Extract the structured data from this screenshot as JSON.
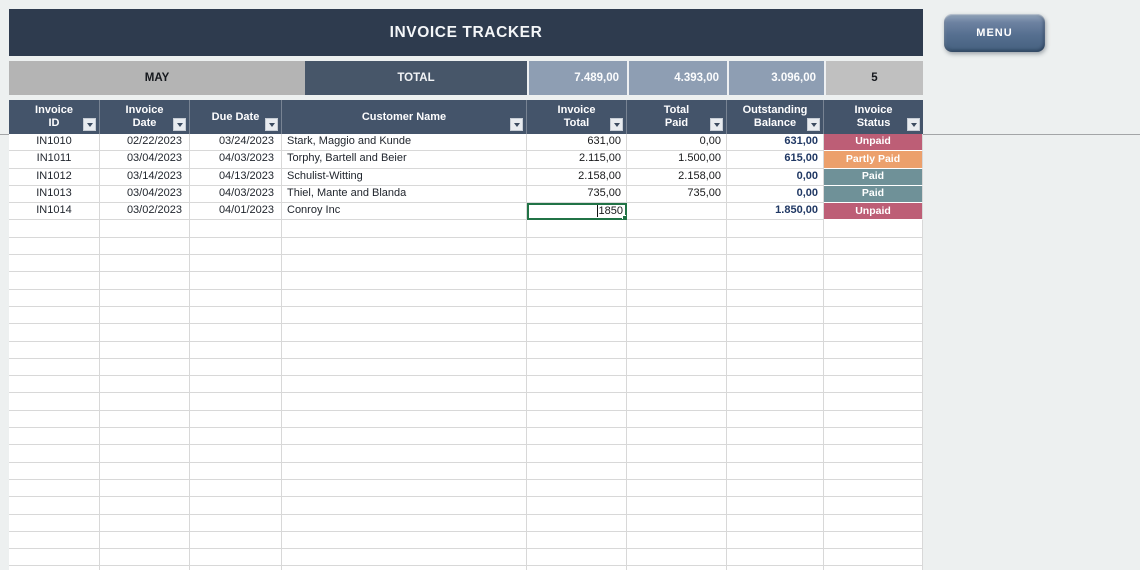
{
  "app": {
    "title": "INVOICE TRACKER",
    "menu_button_label": "MENU"
  },
  "summary": {
    "month": "MAY",
    "total_label": "TOTAL",
    "invoice_total": "7.489,00",
    "total_paid": "4.393,00",
    "outstanding_balance": "3.096,00",
    "invoice_count": "5"
  },
  "table": {
    "columns": [
      {
        "line1": "Invoice",
        "line2": "ID"
      },
      {
        "line1": "Invoice",
        "line2": "Date"
      },
      {
        "line1": "Due Date"
      },
      {
        "line1": "Customer Name"
      },
      {
        "line1": "Invoice",
        "line2": "Total"
      },
      {
        "line1": "Total",
        "line2": "Paid"
      },
      {
        "line1": "Outstanding",
        "line2": "Balance"
      },
      {
        "line1": "Invoice",
        "line2": "Status"
      }
    ],
    "rows": [
      {
        "invoice_id": "IN1010",
        "invoice_date": "02/22/2023",
        "due_date": "03/24/2023",
        "customer_name": "Stark, Maggio and Kunde",
        "invoice_total": "631,00",
        "total_paid": "0,00",
        "outstanding_balance": "631,00",
        "status": "Unpaid"
      },
      {
        "invoice_id": "IN1011",
        "invoice_date": "03/04/2023",
        "due_date": "04/03/2023",
        "customer_name": "Torphy, Bartell and Beier",
        "invoice_total": "2.115,00",
        "total_paid": "1.500,00",
        "outstanding_balance": "615,00",
        "status": "Partly Paid"
      },
      {
        "invoice_id": "IN1012",
        "invoice_date": "03/14/2023",
        "due_date": "04/13/2023",
        "customer_name": "Schulist-Witting",
        "invoice_total": "2.158,00",
        "total_paid": "2.158,00",
        "outstanding_balance": "0,00",
        "status": "Paid"
      },
      {
        "invoice_id": "IN1013",
        "invoice_date": "03/04/2023",
        "due_date": "04/03/2023",
        "customer_name": "Thiel, Mante and Blanda",
        "invoice_total": "735,00",
        "total_paid": "735,00",
        "outstanding_balance": "0,00",
        "status": "Paid"
      },
      {
        "invoice_id": "IN1014",
        "invoice_date": "03/02/2023",
        "due_date": "04/01/2023",
        "customer_name": "Conroy Inc",
        "invoice_total": "1850",
        "total_paid": "",
        "outstanding_balance": "1.850,00",
        "status": "Unpaid"
      }
    ],
    "editing_cell": {
      "row": 4,
      "column": "invoice_total",
      "value": "1850"
    }
  },
  "status_colors": {
    "Unpaid": "#bd5e76",
    "Partly Paid": "#eca06c",
    "Paid": "#6f9198"
  },
  "colors": {
    "title_bar": "#2e3b4e",
    "table_header": "#44546a",
    "summary_value_bg": "#8e9eb3",
    "edit_cell_border": "#217346",
    "outstanding_text": "#203864"
  },
  "empty_row_count": 21
}
